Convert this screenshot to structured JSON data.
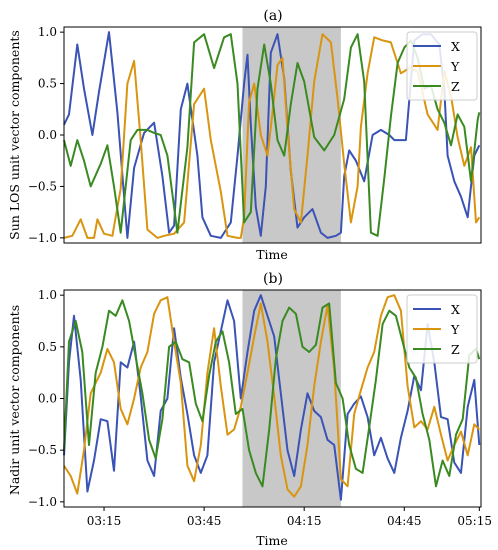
{
  "figure": {
    "background": "#ffffff",
    "shade_color": "#c8c8c8"
  },
  "chart_data": [
    {
      "type": "line",
      "title": "(a)",
      "xlabel": "Time",
      "ylabel": "Sun LOS unit vector components",
      "xlim": [
        0,
        250
      ],
      "ylim": [
        -1.05,
        1.05
      ],
      "yticks": [
        1.0,
        0.5,
        0.0,
        -0.5,
        -1.0
      ],
      "ytick_labels": [
        "1.0",
        "0.5",
        "0.0",
        "−0.5",
        "−1.0"
      ],
      "shaded_region": [
        107,
        166
      ],
      "legend_position": "top-right",
      "grid": false,
      "series": [
        {
          "name": "X",
          "color": "#3a53b5",
          "x": [
            0,
            3,
            8,
            12,
            17,
            21,
            27,
            32,
            38,
            42,
            48,
            54,
            59,
            63,
            66,
            70,
            74,
            80,
            83,
            88,
            94,
            100,
            104,
            108,
            110,
            112,
            115,
            118,
            121,
            124,
            128,
            132,
            136,
            140,
            144,
            149,
            154,
            158,
            163,
            166,
            168,
            171,
            175,
            180,
            185,
            190,
            195,
            198,
            205,
            210,
            215,
            220,
            225,
            228,
            230,
            234,
            238,
            242,
            246,
            249
          ],
          "y": [
            0.1,
            0.2,
            0.88,
            0.45,
            0.0,
            0.42,
            1.0,
            0.22,
            -1.0,
            -0.32,
            0.02,
            0.12,
            -0.4,
            -0.95,
            -0.88,
            0.25,
            0.5,
            -0.2,
            -0.8,
            -0.98,
            -1.0,
            -0.85,
            -0.2,
            0.5,
            0.78,
            0.1,
            -0.7,
            -0.98,
            -0.5,
            0.8,
            0.98,
            0.55,
            -0.35,
            -0.9,
            -0.8,
            -0.72,
            -0.95,
            -1.0,
            -0.98,
            -0.95,
            -0.4,
            -0.15,
            -0.25,
            -0.45,
            0.0,
            0.05,
            0.0,
            -0.05,
            -0.05,
            0.92,
            0.98,
            0.98,
            0.88,
            0.45,
            -0.2,
            -0.45,
            -0.6,
            -0.8,
            -0.2,
            -0.1
          ]
        },
        {
          "name": "Y",
          "color": "#d9950f",
          "x": [
            0,
            5,
            10,
            14,
            18,
            20,
            24,
            29,
            34,
            38,
            42,
            46,
            50,
            56,
            60,
            66,
            72,
            78,
            84,
            88,
            94,
            98,
            104,
            106,
            108,
            111,
            114,
            118,
            122,
            125,
            128,
            131,
            134,
            138,
            142,
            146,
            150,
            155,
            160,
            164,
            168,
            172,
            176,
            178,
            182,
            186,
            191,
            196,
            202,
            207,
            212,
            218,
            224,
            228,
            232,
            236,
            240,
            244,
            247,
            249
          ],
          "y": [
            -1.0,
            -0.98,
            -0.82,
            -1.0,
            -1.0,
            -0.82,
            -0.96,
            -0.98,
            -0.52,
            0.5,
            0.72,
            -0.05,
            -0.92,
            -1.0,
            -0.98,
            -0.96,
            -0.85,
            0.3,
            0.45,
            -0.05,
            -0.55,
            -0.98,
            -1.0,
            -1.0,
            -0.8,
            0.32,
            0.5,
            0.0,
            -0.2,
            0.22,
            0.68,
            0.75,
            0.05,
            -0.72,
            -0.85,
            -0.2,
            0.52,
            0.98,
            0.9,
            0.35,
            -0.28,
            -0.85,
            -0.5,
            0.08,
            0.6,
            0.95,
            0.92,
            0.9,
            0.6,
            0.65,
            0.62,
            0.2,
            0.05,
            0.62,
            0.38,
            -0.02,
            -0.3,
            -0.12,
            -0.85,
            -0.8
          ]
        },
        {
          "name": "Z",
          "color": "#3a8a22",
          "x": [
            0,
            4,
            8,
            12,
            16,
            22,
            26,
            30,
            34,
            40,
            44,
            50,
            54,
            58,
            62,
            68,
            74,
            78,
            84,
            90,
            96,
            100,
            104,
            108,
            112,
            116,
            120,
            124,
            128,
            132,
            136,
            140,
            144,
            150,
            156,
            162,
            168,
            172,
            176,
            180,
            184,
            188,
            192,
            196,
            200,
            204,
            208,
            212,
            216,
            220,
            224,
            228,
            232,
            236,
            240,
            244,
            248,
            249
          ],
          "y": [
            -0.05,
            -0.3,
            -0.05,
            -0.25,
            -0.5,
            -0.28,
            -0.1,
            -0.5,
            -0.95,
            -0.05,
            0.05,
            0.05,
            0.02,
            0.0,
            -0.2,
            -0.95,
            -0.12,
            0.9,
            0.98,
            0.65,
            0.95,
            0.98,
            0.5,
            -0.85,
            -0.75,
            0.45,
            0.88,
            0.5,
            -0.05,
            -0.2,
            0.3,
            0.7,
            0.52,
            -0.02,
            -0.15,
            0.0,
            0.35,
            0.85,
            0.98,
            0.52,
            -0.95,
            -0.98,
            -0.42,
            0.18,
            0.7,
            0.85,
            0.92,
            0.75,
            0.45,
            0.48,
            0.25,
            0.12,
            -0.1,
            0.2,
            0.08,
            -0.45,
            0.15,
            0.22
          ]
        }
      ]
    },
    {
      "type": "line",
      "title": "(b)",
      "xlabel": "Time",
      "ylabel": "Nadir unit vector components",
      "xlim": [
        0,
        250
      ],
      "ylim": [
        -1.05,
        1.05
      ],
      "yticks": [
        1.0,
        0.5,
        0.0,
        -0.5,
        -1.0
      ],
      "ytick_labels": [
        "1.0",
        "0.5",
        "0.0",
        "−0.5",
        "−1.0"
      ],
      "xtick_positions": [
        24,
        84,
        144,
        204,
        249
      ],
      "xtick_labels": [
        "03:15",
        "03:45",
        "04:15",
        "04:45",
        "05:15"
      ],
      "shaded_region": [
        107,
        166
      ],
      "legend_position": "top-right",
      "grid": false,
      "series": [
        {
          "name": "X",
          "color": "#3a53b5",
          "x": [
            0,
            3,
            6,
            10,
            14,
            18,
            22,
            26,
            30,
            34,
            38,
            42,
            46,
            50,
            54,
            58,
            62,
            66,
            70,
            74,
            78,
            82,
            86,
            90,
            94,
            98,
            102,
            106,
            110,
            114,
            118,
            122,
            126,
            130,
            134,
            138,
            142,
            146,
            150,
            154,
            158,
            162,
            166,
            170,
            174,
            178,
            182,
            186,
            190,
            194,
            198,
            202,
            206,
            210,
            214,
            218,
            222,
            226,
            230,
            234,
            238,
            242,
            246,
            249
          ],
          "y": [
            -0.55,
            0.35,
            0.8,
            0.18,
            -0.9,
            -0.6,
            -0.2,
            -0.22,
            -0.7,
            0.35,
            0.3,
            0.55,
            0.02,
            -0.6,
            -0.75,
            -0.12,
            0.0,
            0.68,
            0.2,
            -0.15,
            -0.55,
            -0.72,
            -0.55,
            0.35,
            0.65,
            0.95,
            0.75,
            0.0,
            0.45,
            0.85,
            1.0,
            0.8,
            0.6,
            0.05,
            -0.5,
            -0.75,
            -0.3,
            0.05,
            -0.12,
            -0.18,
            -0.4,
            -0.45,
            -0.98,
            -0.15,
            -0.05,
            0.02,
            -0.18,
            -0.55,
            -0.38,
            -0.58,
            -0.72,
            -0.38,
            -0.12,
            0.22,
            0.08,
            0.72,
            0.35,
            -0.18,
            -0.2,
            -0.62,
            -0.72,
            -0.08,
            0.18,
            -0.45
          ]
        },
        {
          "name": "Y",
          "color": "#d9950f",
          "x": [
            0,
            4,
            8,
            12,
            16,
            22,
            26,
            30,
            34,
            38,
            42,
            46,
            50,
            54,
            58,
            62,
            66,
            70,
            74,
            78,
            82,
            86,
            90,
            94,
            98,
            102,
            106,
            110,
            114,
            118,
            122,
            126,
            130,
            134,
            138,
            142,
            146,
            150,
            154,
            158,
            162,
            166,
            170,
            174,
            178,
            182,
            186,
            190,
            194,
            198,
            202,
            206,
            210,
            214,
            218,
            222,
            226,
            230,
            234,
            238,
            242,
            246,
            249
          ],
          "y": [
            -0.65,
            -0.75,
            -0.92,
            -0.5,
            0.05,
            0.25,
            0.48,
            0.35,
            -0.1,
            -0.25,
            0.0,
            0.3,
            0.45,
            0.82,
            0.95,
            0.98,
            0.55,
            0.15,
            -0.65,
            -0.8,
            -0.45,
            0.25,
            0.68,
            0.12,
            -0.35,
            -0.3,
            -0.08,
            0.25,
            0.6,
            0.92,
            0.55,
            0.02,
            -0.55,
            -0.88,
            -0.95,
            -0.85,
            -0.45,
            0.12,
            0.55,
            0.9,
            0.28,
            -0.78,
            -0.85,
            -0.15,
            0.08,
            0.3,
            0.45,
            0.8,
            0.98,
            1.0,
            0.85,
            0.12,
            -0.28,
            -0.22,
            -0.3,
            -0.08,
            -0.35,
            -0.6,
            -0.45,
            -0.32,
            -0.55,
            -0.25,
            -0.3
          ]
        },
        {
          "name": "Z",
          "color": "#3a8a22",
          "x": [
            0,
            3,
            7,
            11,
            15,
            19,
            23,
            27,
            31,
            35,
            39,
            43,
            47,
            51,
            55,
            59,
            63,
            67,
            71,
            75,
            79,
            83,
            87,
            91,
            95,
            99,
            103,
            107,
            111,
            115,
            119,
            123,
            127,
            131,
            135,
            139,
            143,
            147,
            151,
            155,
            159,
            163,
            167,
            171,
            175,
            179,
            183,
            187,
            191,
            195,
            199,
            203,
            207,
            211,
            215,
            219,
            223,
            227,
            231,
            235,
            239,
            243,
            247,
            249
          ],
          "y": [
            -0.5,
            0.55,
            0.75,
            0.45,
            -0.45,
            0.25,
            0.5,
            0.85,
            0.8,
            0.95,
            0.75,
            0.4,
            0.05,
            -0.4,
            -0.58,
            -0.2,
            0.5,
            0.55,
            0.38,
            0.35,
            -0.05,
            -0.22,
            0.22,
            0.55,
            0.65,
            0.35,
            -0.15,
            -0.1,
            -0.5,
            -0.72,
            -0.85,
            -0.3,
            0.38,
            0.75,
            0.88,
            0.82,
            0.5,
            0.45,
            0.52,
            0.88,
            0.92,
            0.15,
            0.0,
            -0.45,
            -0.68,
            -0.72,
            -0.28,
            0.18,
            0.72,
            0.85,
            0.8,
            0.55,
            0.3,
            0.2,
            -0.15,
            -0.4,
            -0.85,
            -0.6,
            -0.75,
            -0.35,
            -0.2,
            0.42,
            0.48,
            0.38
          ]
        }
      ]
    }
  ]
}
